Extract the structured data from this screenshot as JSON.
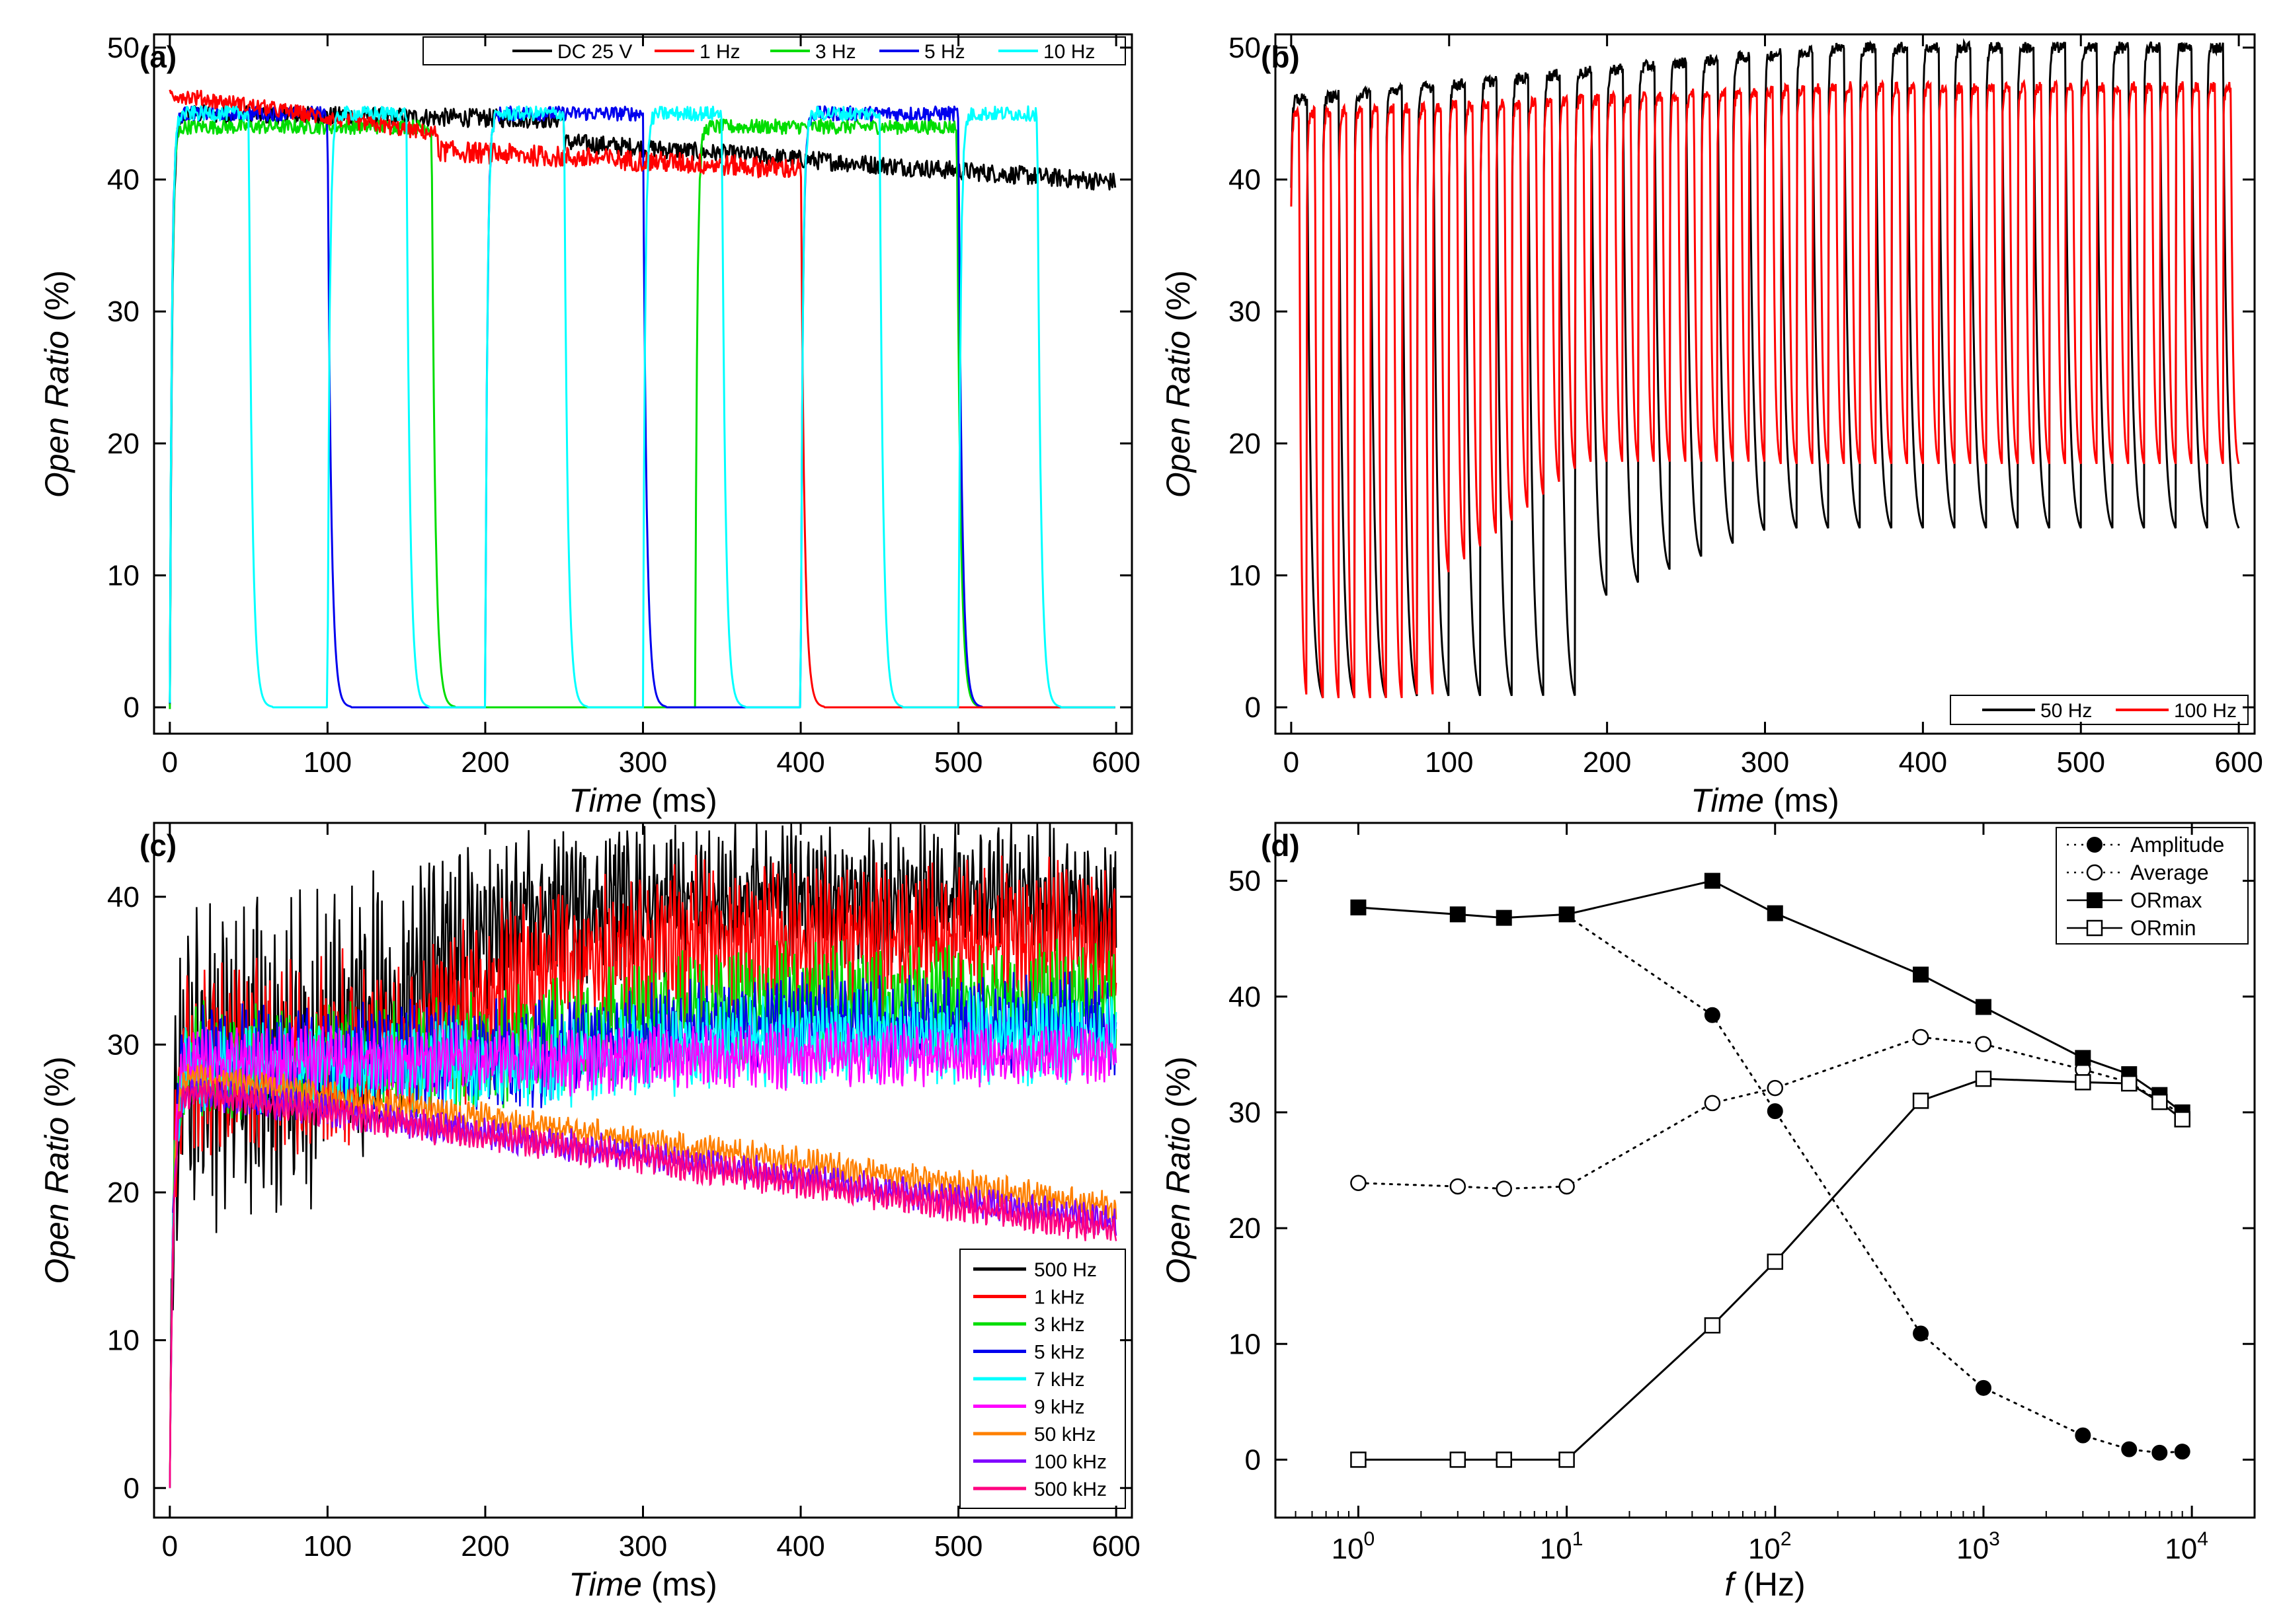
{
  "chart_data": [
    {
      "panel": "(a)",
      "type": "line",
      "xlabel_italic": "Time",
      "xlabel_unit": "(ms)",
      "ylabel_italic": "Open Ratio",
      "ylabel_unit": "(%)",
      "xlim": [
        -10,
        610
      ],
      "ylim": [
        -2,
        51
      ],
      "xticks": [
        0,
        100,
        200,
        300,
        400,
        500,
        600
      ],
      "yticks": [
        0,
        10,
        20,
        30,
        40,
        50
      ],
      "legend_position": "top-right",
      "series": [
        {
          "name": "DC 25 V",
          "color": "#000000",
          "kind": "dc",
          "start": 45,
          "end": 39.8
        },
        {
          "name": "1 Hz",
          "color": "#ff0000",
          "kind": "square",
          "period": 1000,
          "on_start": 0,
          "on_end": 400,
          "high": 44,
          "low": 0
        },
        {
          "name": "3 Hz",
          "color": "#00dd00",
          "kind": "square",
          "period": 333,
          "on_start": 0,
          "on_end": 166,
          "high": 44,
          "low": 0
        },
        {
          "name": "5 Hz",
          "color": "#0000ee",
          "kind": "square",
          "period": 200,
          "on_start": 0,
          "on_end": 100,
          "high": 45,
          "low": 0
        },
        {
          "name": "10 Hz",
          "color": "#00ffff",
          "kind": "square",
          "period": 100,
          "on_start": 0,
          "on_end": 50,
          "high": 45,
          "low": 0
        }
      ]
    },
    {
      "panel": "(b)",
      "type": "line",
      "xlabel_italic": "Time",
      "xlabel_unit": "(ms)",
      "ylabel_italic": "Open Ratio",
      "ylabel_unit": "(%)",
      "xlim": [
        -10,
        610
      ],
      "ylim": [
        -2,
        51
      ],
      "xticks": [
        0,
        100,
        200,
        300,
        400,
        500,
        600
      ],
      "yticks": [
        0,
        10,
        20,
        30,
        40,
        50
      ],
      "legend_position": "bottom-right",
      "series": [
        {
          "name": "50 Hz",
          "color": "#000000",
          "period": 20,
          "max_start": 46,
          "max_end": 50,
          "min_start": 0,
          "min_end": 13
        },
        {
          "name": "100 Hz",
          "color": "#ff0000",
          "period": 10,
          "max_start": 45,
          "max_end": 47,
          "min_start": 0,
          "min_end": 18
        }
      ]
    },
    {
      "panel": "(c)",
      "type": "line",
      "xlabel_italic": "Time",
      "xlabel_unit": "(ms)",
      "ylabel_italic": "Open Ratio",
      "ylabel_unit": "(%)",
      "xlim": [
        -10,
        610
      ],
      "ylim": [
        -2,
        45
      ],
      "xticks": [
        0,
        100,
        200,
        300,
        400,
        500,
        600
      ],
      "yticks": [
        0,
        10,
        20,
        30,
        40
      ],
      "legend_position": "bottom-right",
      "series": [
        {
          "name": "500 Hz",
          "color": "#000000",
          "early": 21,
          "early_hi": 36,
          "late": 38,
          "late_hi": 42,
          "t_rise": 160,
          "noise": 2.5
        },
        {
          "name": "1 kHz",
          "color": "#ff0000",
          "early": 25,
          "early_hi": 33,
          "late": 34,
          "late_hi": 40,
          "t_rise": 200,
          "noise": 2.0
        },
        {
          "name": "3 kHz",
          "color": "#00dd00",
          "early": 27,
          "early_hi": 31,
          "late": 31,
          "late_hi": 35,
          "t_rise": 260,
          "noise": 1.5
        },
        {
          "name": "5 kHz",
          "color": "#0000ee",
          "early": 27,
          "early_hi": 31,
          "late": 30,
          "late_hi": 33,
          "t_rise": 280,
          "noise": 1.5
        },
        {
          "name": "7 kHz",
          "color": "#00ffff",
          "early": 27,
          "early_hi": 30,
          "late": 29,
          "late_hi": 32,
          "t_rise": 300,
          "noise": 1.3
        },
        {
          "name": "9 kHz",
          "color": "#ff00ff",
          "early": 28,
          "early_hi": 30,
          "late": 28.5,
          "late_hi": 30,
          "t_rise": 300,
          "noise": 1.2
        },
        {
          "name": "50 kHz",
          "color": "#ff8000",
          "early": 28,
          "early_hi": 28,
          "late": 19,
          "late_hi": 19,
          "t_rise": 0,
          "noise": 1.0
        },
        {
          "name": "100 kHz",
          "color": "#8000ff",
          "early": 27,
          "early_hi": 27,
          "late": 18,
          "late_hi": 18,
          "t_rise": 0,
          "noise": 1.0
        },
        {
          "name": "500 kHz",
          "color": "#ff0080",
          "early": 27,
          "early_hi": 27,
          "late": 17.5,
          "late_hi": 17.5,
          "t_rise": 0,
          "noise": 1.0
        }
      ]
    },
    {
      "panel": "(d)",
      "type": "line",
      "xscale": "log",
      "xlabel_italic": "f",
      "xlabel_unit": "(Hz)",
      "ylabel_italic": "Open Ratio",
      "ylabel_unit": "(%)",
      "xlim": [
        0.4,
        20000
      ],
      "ylim": [
        -5,
        55
      ],
      "xticks": [
        1,
        10,
        100,
        1000,
        10000
      ],
      "xtick_labels": [
        {
          "base": "10",
          "exp": "0"
        },
        {
          "base": "10",
          "exp": "1"
        },
        {
          "base": "10",
          "exp": "2"
        },
        {
          "base": "10",
          "exp": "3"
        },
        {
          "base": "10",
          "exp": "4"
        }
      ],
      "yticks": [
        0,
        10,
        20,
        30,
        40,
        50
      ],
      "legend_position": "top-right",
      "x": [
        1,
        3,
        5,
        10,
        50,
        100,
        500,
        1000,
        3000,
        5000,
        7000,
        9000
      ],
      "series": [
        {
          "name": "Amplitude",
          "style": "dotted",
          "marker": "filled-circle",
          "values": [
            null,
            null,
            null,
            47,
            38.4,
            30.1,
            10.9,
            6.2,
            2.1,
            0.9,
            0.6,
            0.7
          ]
        },
        {
          "name": "Average",
          "style": "dotted",
          "marker": "open-circle",
          "values": [
            23.9,
            23.6,
            23.4,
            23.6,
            30.8,
            32.1,
            36.5,
            35.9,
            33.7,
            32.6,
            31.0,
            29.8
          ]
        },
        {
          "name": "ORmax",
          "style": "solid",
          "marker": "filled-square",
          "values": [
            47.7,
            47.1,
            46.8,
            47.1,
            50.0,
            47.2,
            41.9,
            39.1,
            34.7,
            33.3,
            31.5,
            30.0
          ]
        },
        {
          "name": "ORmin",
          "style": "solid",
          "marker": "open-square",
          "values": [
            0,
            0,
            0,
            0,
            11.6,
            17.1,
            31.0,
            32.9,
            32.6,
            32.5,
            30.9,
            29.4
          ]
        }
      ]
    }
  ]
}
